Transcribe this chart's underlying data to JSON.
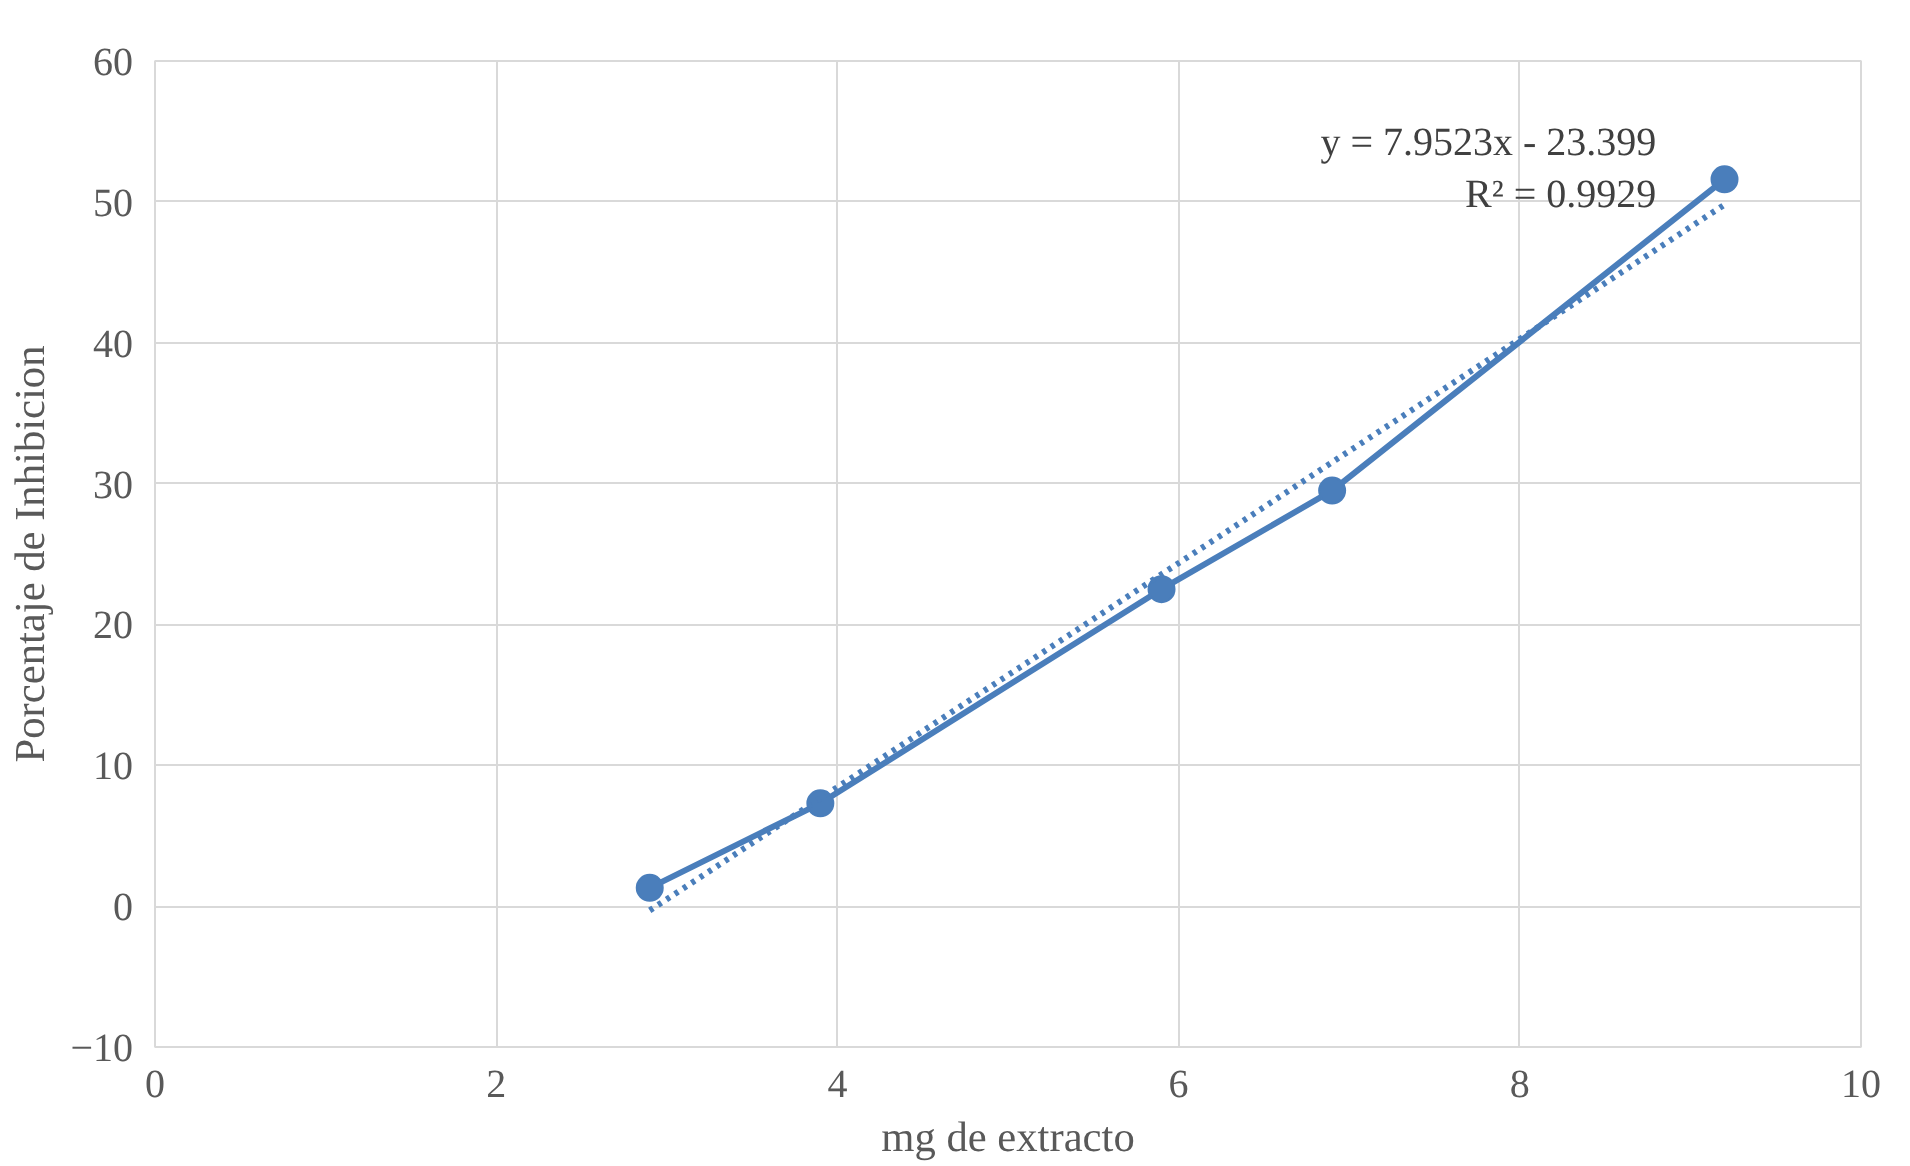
{
  "chart_data": {
    "type": "line",
    "xlabel": "mg de extracto",
    "ylabel": "Porcentaje de Inhibicion",
    "annotations": [
      "y = 7.9523x - 23.399",
      "R² = 0.9929"
    ],
    "xlim": [
      0,
      10
    ],
    "xticks": [
      0,
      2,
      4,
      6,
      8,
      10
    ],
    "ylim": [
      -10,
      60
    ],
    "yticks": [
      -10,
      0,
      10,
      20,
      30,
      40,
      50,
      60
    ],
    "grid": true,
    "series": [
      {
        "color": "#4a7ebb",
        "x": [
          2.9,
          3.9,
          5.9,
          6.9,
          9.2
        ],
        "values": [
          1.3,
          7.3,
          22.5,
          29.5,
          51.6
        ],
        "marker": "circle",
        "line_style": "solid"
      },
      {
        "type": "line",
        "color": "#4a7ebb",
        "x": [
          2.9,
          9.2
        ],
        "values": [
          -0.3,
          49.8
        ],
        "marker": "none",
        "line_style": "dotted"
      }
    ]
  }
}
